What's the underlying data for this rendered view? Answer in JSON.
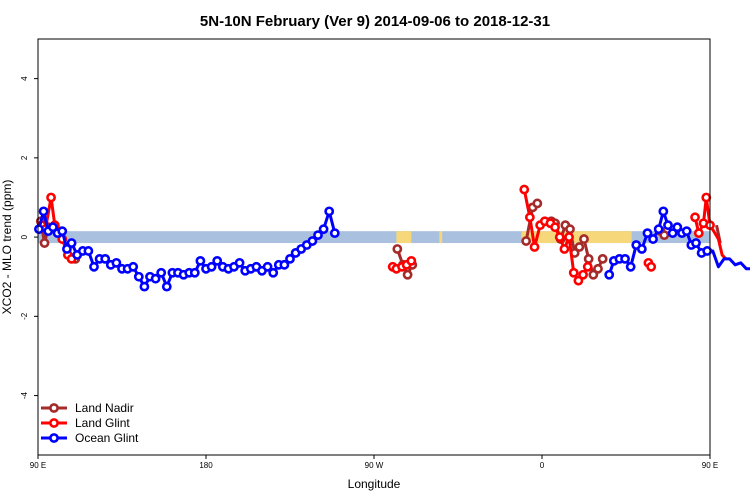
{
  "chart_data": {
    "type": "line",
    "title": "5N-10N February (Ver 9)   2014-09-06 to 2018-12-31",
    "xlabel": "Longitude",
    "ylabel": "XCO2 - MLO trend (ppm)",
    "xlim": [
      90,
      450
    ],
    "ylim": [
      -5.5,
      5
    ],
    "x_ticks": [
      {
        "value": 90,
        "label": "90 E"
      },
      {
        "value": 180,
        "label": "180"
      },
      {
        "value": 270,
        "label": "90 W"
      },
      {
        "value": 360,
        "label": "0"
      },
      {
        "value": 450,
        "label": "90 E"
      },
      {
        "value": 540,
        "label": "180"
      }
    ],
    "y_ticks": [
      {
        "value": -4,
        "label": "-4"
      },
      {
        "value": -2,
        "label": "-2"
      },
      {
        "value": 0,
        "label": "0"
      },
      {
        "value": 2,
        "label": "2"
      },
      {
        "value": 4,
        "label": "4"
      }
    ],
    "grid": false,
    "legend_position": "bottom-left",
    "background_band": {
      "color": "#a9c1de",
      "y": [
        -0.15,
        0.15
      ]
    },
    "land_band": {
      "color": "#f6d77a",
      "segments": [
        [
          282,
          290
        ],
        [
          305,
          306.5
        ],
        [
          349,
          408
        ]
      ]
    },
    "series": [
      {
        "name": "Land Nadir",
        "color": "#a52a2a",
        "segments": [
          [
            [
              91.5,
              0.4
            ],
            [
              93.5,
              -0.15
            ],
            [
              95.5,
              0.25
            ]
          ],
          [
            [
              110,
              -0.55
            ]
          ],
          [
            [
              282.5,
              -0.3
            ],
            [
              285.5,
              -0.7
            ],
            [
              288,
              -0.95
            ],
            [
              290.5,
              -0.7
            ]
          ],
          [
            [
              351.5,
              -0.1
            ],
            [
              355,
              0.75
            ],
            [
              357.5,
              0.85
            ]
          ],
          [
            [
              365,
              0.4
            ],
            [
              367,
              0.35
            ],
            [
              370,
              -0.05
            ],
            [
              372.5,
              0.3
            ],
            [
              375,
              0.2
            ],
            [
              377.5,
              -0.4
            ],
            [
              380,
              -0.25
            ],
            [
              382.5,
              -0.05
            ],
            [
              385,
              -0.55
            ],
            [
              387.5,
              -0.95
            ],
            [
              390,
              -0.8
            ],
            [
              392.5,
              -0.55
            ]
          ],
          [
            [
              423.5,
              0.15
            ],
            [
              425.5,
              0.05
            ]
          ],
          [
            [
              453.5,
              0.3
            ],
            [
              455.5,
              -0.15
            ]
          ]
        ]
      },
      {
        "name": "Land Glint",
        "color": "#ff0000",
        "segments": [
          [
            [
              92,
              0.3
            ],
            [
              94,
              0.2
            ],
            [
              97,
              1.0
            ],
            [
              99,
              0.3
            ],
            [
              101,
              0.15
            ],
            [
              103,
              -0.05
            ],
            [
              106,
              -0.45
            ],
            [
              108,
              -0.55
            ]
          ],
          [
            [
              280,
              -0.75
            ],
            [
              282,
              -0.8
            ],
            [
              285,
              -0.75
            ],
            [
              287.5,
              -0.7
            ],
            [
              290,
              -0.6
            ]
          ],
          [
            [
              350.5,
              1.2
            ],
            [
              353.5,
              0.5
            ],
            [
              356,
              -0.25
            ],
            [
              359,
              0.3
            ],
            [
              361.5,
              0.4
            ],
            [
              364.5,
              0.35
            ],
            [
              367,
              0.25
            ],
            [
              369.5,
              0.0
            ],
            [
              372,
              -0.3
            ],
            [
              374.5,
              0.0
            ],
            [
              377,
              -0.9
            ],
            [
              379.5,
              -1.1
            ],
            [
              382,
              -0.95
            ],
            [
              384.5,
              -0.75
            ]
          ],
          [
            [
              417,
              -0.65
            ],
            [
              418.5,
              -0.75
            ]
          ],
          [
            [
              442,
              0.5
            ],
            [
              444,
              0.1
            ],
            [
              446.5,
              0.35
            ],
            [
              448,
              1.0
            ],
            [
              450,
              0.3
            ],
            [
              452,
              0.15
            ],
            [
              454.5,
              -0.05
            ],
            [
              456.5,
              -0.45
            ],
            [
              458.5,
              -0.55
            ]
          ]
        ]
      },
      {
        "name": "Ocean Glint",
        "color": "#0000ff",
        "segments": [
          [
            [
              90.5,
              0.2
            ],
            [
              93,
              0.65
            ],
            [
              95.5,
              0.15
            ],
            [
              98,
              0.25
            ],
            [
              100.5,
              0.1
            ],
            [
              103,
              0.15
            ],
            [
              105.5,
              -0.3
            ],
            [
              108,
              -0.15
            ],
            [
              111,
              -0.45
            ],
            [
              114,
              -0.35
            ],
            [
              117,
              -0.35
            ],
            [
              120,
              -0.75
            ],
            [
              123,
              -0.55
            ],
            [
              126,
              -0.55
            ],
            [
              129,
              -0.7
            ],
            [
              132,
              -0.65
            ],
            [
              135,
              -0.8
            ],
            [
              138,
              -0.8
            ],
            [
              141,
              -0.75
            ],
            [
              144,
              -1.0
            ],
            [
              147,
              -1.25
            ],
            [
              150,
              -1.0
            ],
            [
              153,
              -1.05
            ],
            [
              156,
              -0.9
            ],
            [
              159,
              -1.25
            ],
            [
              162,
              -0.9
            ],
            [
              165,
              -0.9
            ],
            [
              168,
              -0.95
            ],
            [
              171,
              -0.9
            ],
            [
              174,
              -0.9
            ],
            [
              177,
              -0.6
            ],
            [
              180,
              -0.8
            ],
            [
              183,
              -0.75
            ],
            [
              186,
              -0.6
            ],
            [
              189,
              -0.75
            ],
            [
              192,
              -0.8
            ],
            [
              195,
              -0.75
            ],
            [
              198,
              -0.65
            ],
            [
              201,
              -0.85
            ],
            [
              204,
              -0.8
            ],
            [
              207,
              -0.75
            ],
            [
              210,
              -0.85
            ],
            [
              213,
              -0.75
            ],
            [
              216,
              -0.9
            ],
            [
              219,
              -0.7
            ],
            [
              222,
              -0.7
            ],
            [
              225,
              -0.55
            ],
            [
              228,
              -0.4
            ],
            [
              231,
              -0.3
            ],
            [
              234,
              -0.2
            ],
            [
              237,
              -0.1
            ],
            [
              240,
              0.05
            ],
            [
              243,
              0.2
            ],
            [
              246,
              0.65
            ],
            [
              249,
              0.1
            ]
          ],
          [
            [
              396,
              -0.95
            ],
            [
              398.5,
              -0.6
            ],
            [
              401.5,
              -0.55
            ],
            [
              404.5,
              -0.55
            ],
            [
              407.5,
              -0.75
            ],
            [
              410.5,
              -0.2
            ],
            [
              413.5,
              -0.3
            ],
            [
              416.5,
              0.1
            ],
            [
              419.5,
              -0.05
            ],
            [
              422.5,
              0.2
            ],
            [
              425,
              0.65
            ],
            [
              427.5,
              0.3
            ],
            [
              430,
              0.1
            ],
            [
              432.5,
              0.25
            ],
            [
              435,
              0.1
            ],
            [
              437.5,
              0.15
            ],
            [
              440,
              -0.2
            ],
            [
              442.5,
              -0.15
            ],
            [
              445.5,
              -0.4
            ],
            [
              448.5,
              -0.35
            ],
            [
              451.5,
              -0.35
            ],
            [
              454.5,
              -0.75
            ],
            [
              457.5,
              -0.55
            ],
            [
              460.5,
              -0.55
            ],
            [
              463.5,
              -0.7
            ],
            [
              466.5,
              -0.65
            ],
            [
              469.5,
              -0.8
            ],
            [
              472.5,
              -0.8
            ]
          ]
        ]
      }
    ]
  }
}
